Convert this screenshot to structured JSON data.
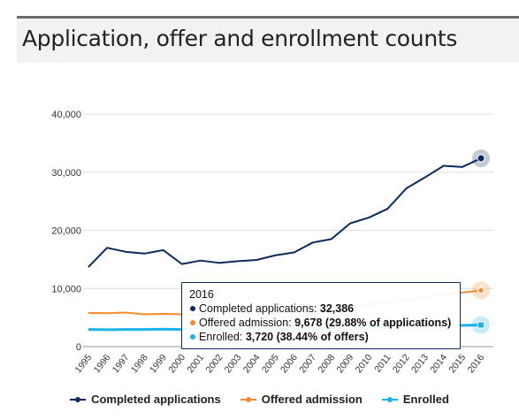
{
  "title": "Application, offer and enrollment counts",
  "chart_data": {
    "type": "line",
    "title": "Application, offer and enrollment counts",
    "xlabel": "",
    "ylabel": "",
    "x": [
      "1995",
      "1996",
      "1997",
      "1998",
      "1999",
      "2000",
      "2001",
      "2002",
      "2003",
      "2004",
      "2005",
      "2006",
      "2007",
      "2008",
      "2009",
      "2010",
      "2011",
      "2012",
      "2013",
      "2014",
      "2015",
      "2016"
    ],
    "ylim": [
      0,
      40000
    ],
    "yticks": [
      0,
      10000,
      20000,
      30000,
      40000
    ],
    "ytick_labels": [
      "0",
      "10,000",
      "20,000",
      "30,000",
      "40,000"
    ],
    "grid": true,
    "legend_position": "bottom",
    "series": [
      {
        "name": "Completed applications",
        "color": "#0b2a5b",
        "marker": "circle",
        "values": [
          13700,
          17000,
          16300,
          16000,
          16600,
          14200,
          14800,
          14400,
          14700,
          14900,
          15700,
          16200,
          17900,
          18500,
          21200,
          22200,
          23700,
          27200,
          29100,
          31100,
          30900,
          32386
        ]
      },
      {
        "name": "Offered admission",
        "color": "#f28a2e",
        "marker": "diamond",
        "values": [
          5800,
          5750,
          5850,
          5550,
          5650,
          5550,
          5600,
          5600,
          5650,
          5700,
          5750,
          5850,
          6000,
          6300,
          6700,
          7200,
          7700,
          8000,
          8600,
          9000,
          9300,
          9678
        ]
      },
      {
        "name": "Enrolled",
        "color": "#1bb3e8",
        "marker": "square",
        "values": [
          2950,
          2900,
          2950,
          2950,
          3000,
          2950,
          3000,
          3000,
          3050,
          3050,
          3100,
          3150,
          3200,
          3250,
          3300,
          3350,
          3400,
          3450,
          3550,
          3600,
          3650,
          3720
        ]
      }
    ]
  },
  "tooltip": {
    "year": "2016",
    "rows": [
      {
        "label": "Completed applications: ",
        "value": "32,386",
        "color": "#0b2a5b"
      },
      {
        "label": "Offered admission: ",
        "value": "9,678 (29.88% of applications)",
        "color": "#f28a2e"
      },
      {
        "label": "Enrolled: ",
        "value": "3,720 (38.44% of offers)",
        "color": "#1bb3e8"
      }
    ]
  },
  "legend": [
    {
      "label": "Completed applications",
      "color": "#0b2a5b"
    },
    {
      "label": "Offered admission",
      "color": "#f28a2e"
    },
    {
      "label": "Enrolled",
      "color": "#1bb3e8"
    }
  ]
}
